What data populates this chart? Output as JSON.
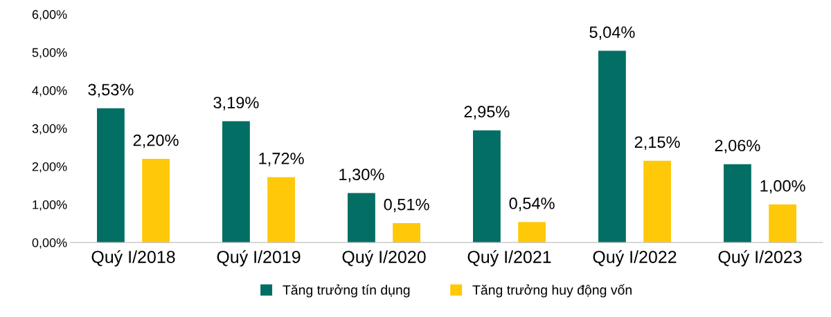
{
  "chart_data": {
    "type": "bar",
    "categories": [
      "Quý I/2018",
      "Quý I/2019",
      "Quý I/2020",
      "Quý I/2021",
      "Quý I/2022",
      "Quý I/2023"
    ],
    "series": [
      {
        "name": "Tăng trưởng tín dụng",
        "color": "#036e64",
        "values": [
          3.53,
          3.19,
          1.3,
          2.95,
          5.04,
          2.06
        ],
        "value_labels": [
          "3,53%",
          "3,19%",
          "1,30%",
          "2,95%",
          "5,04%",
          "2,06%"
        ]
      },
      {
        "name": "Tăng trưởng huy động vốn",
        "color": "#ffc90a",
        "values": [
          2.2,
          1.72,
          0.51,
          0.54,
          2.15,
          1.0
        ],
        "value_labels": [
          "2,20%",
          "1,72%",
          "0,51%",
          "0,54%",
          "2,15%",
          "1,00%"
        ]
      }
    ],
    "ylim": [
      0,
      6
    ],
    "yticks": [
      {
        "value": 0,
        "label": "0,00%"
      },
      {
        "value": 1,
        "label": "1,00%"
      },
      {
        "value": 2,
        "label": "2,00%"
      },
      {
        "value": 3,
        "label": "3,00%"
      },
      {
        "value": 4,
        "label": "4,00%"
      },
      {
        "value": 5,
        "label": "5,00%"
      },
      {
        "value": 6,
        "label": "6,00%"
      }
    ],
    "grid": false,
    "legend": "bottom"
  }
}
